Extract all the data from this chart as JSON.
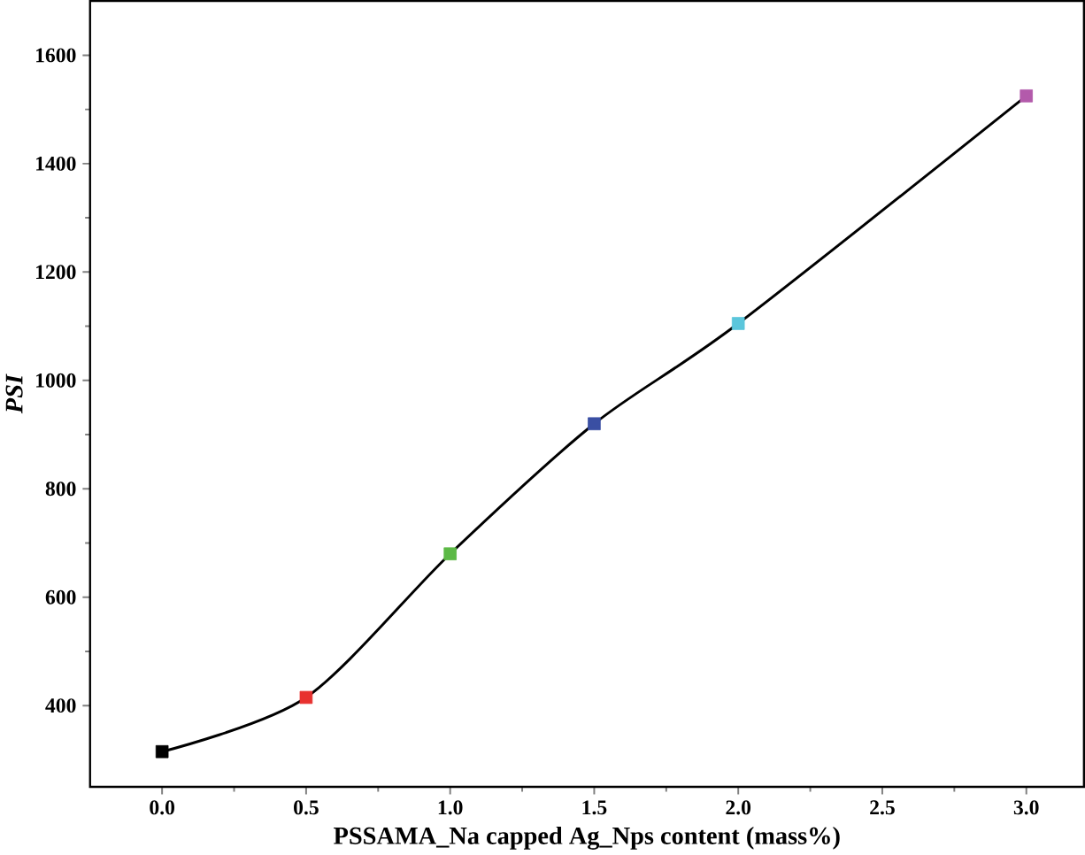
{
  "chart_data": {
    "type": "line",
    "xlabel": "PSSAMA_Na capped Ag_Nps content (mass%)",
    "ylabel": "PSI",
    "x": [
      0,
      0.5,
      1,
      1.5,
      2,
      3
    ],
    "series": [
      {
        "color": "#000000",
        "values": [
          315,
          415,
          680,
          920,
          1105,
          1525
        ],
        "colors": [
          "#000000",
          "#e8312f",
          "#5cb946",
          "#3a4fa3",
          "#5bc6dc",
          "#b35aab"
        ]
      }
    ],
    "xlim": [
      -0.25,
      3.2
    ],
    "ylim": [
      250,
      1700
    ],
    "xticks": [
      {
        "value": 0,
        "label": "0.0"
      },
      {
        "value": 0.5,
        "label": "0.5"
      },
      {
        "value": 1,
        "label": "1.0"
      },
      {
        "value": 1.5,
        "label": "1.5"
      },
      {
        "value": 2,
        "label": "2.0"
      },
      {
        "value": 2.5,
        "label": "2.5"
      },
      {
        "value": 3,
        "label": "3.0"
      }
    ],
    "yticks": [
      400,
      600,
      800,
      1000,
      1200,
      1400,
      1600
    ],
    "marker": "square",
    "line_style": "solid"
  }
}
